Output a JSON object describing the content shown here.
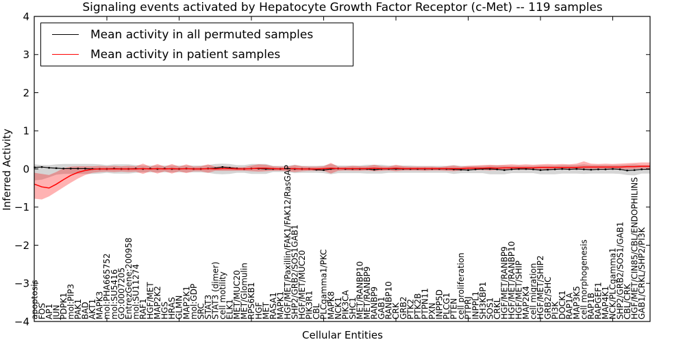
{
  "title": "Signaling events activated by Hepatocyte Growth Factor Receptor (c-Met) -- 119 samples",
  "colors": {
    "patient": "#ff0000",
    "permuted": "#000000",
    "patient_band": "#ff0000",
    "permuted_band": "#000000"
  },
  "chart_data": {
    "type": "line",
    "title": "Signaling events activated by Hepatocyte Growth Factor Receptor (c-Met) -- 119 samples",
    "xlabel": "Cellular Entities",
    "ylabel": "Inferred Activity",
    "ylim": [
      -4,
      4
    ],
    "yticks": [
      4,
      3,
      2,
      1,
      0,
      -1,
      -2,
      -3,
      -4
    ],
    "ytick_labels": [
      "4",
      "3",
      "2",
      "1",
      "0",
      "−1",
      "−2",
      "−3",
      "−4"
    ],
    "grid": false,
    "legend": {
      "position": "upper-left",
      "entries": [
        {
          "label": "Mean activity in all permuted samples",
          "color": "#000000"
        },
        {
          "label": "Mean activity in patient samples",
          "color": "#ff0000"
        }
      ]
    },
    "categories": [
      "apoptosis",
      "FOS",
      "AP1",
      "JUN",
      "PDPK1",
      "mol:PIP3",
      "PAK1",
      "BAD",
      "AKT1",
      "MAPK3",
      "mol:PHA665752",
      "mol:SU5416",
      "GO:0007205",
      "EntrezGene:200958",
      "mol:SU11274",
      "RAF1",
      "HGF/MET",
      "MAP2K2",
      "HGS",
      "HRAS",
      "GLMN",
      "MAP2K1",
      "mol:GDP",
      "SRC",
      "STAT3",
      "STAT3 (dimer)",
      "cell motility",
      "ELK1",
      "MET/MUC20",
      "MET/Glomulin",
      "RPS6KB1",
      "HGF",
      "MET",
      "RASA1",
      "MAPK1",
      "HGF/MET/Paxillin/FAK1/FAK12/RasGAP",
      "SHP2/GRB2/SOS1GAB1",
      "HGF/MET/MUC20",
      "PIK3R1",
      "CBL",
      "PLCgamma1/PKC",
      "MAPK8",
      "NCK1",
      "PIK3CA",
      "SHC1",
      "MET/RANBP10",
      "MET/RANBP9",
      "RANBP9",
      "GAB1",
      "RANBP10",
      "CRK",
      "GRB2",
      "PTK2",
      "PTK2B",
      "PTPN11",
      "PXN",
      "INPP5D",
      "PLCG1",
      "PTEN",
      "cell proliferation",
      "PTPRJ",
      "INPPL1",
      "SH3KBP1",
      "SOS1",
      "CRKL",
      "HGF/MET/RANBP9",
      "HGF/MET/RANBP10",
      "HGF/MET/SHIP",
      "MAP2K4",
      "cell migration",
      "HGF/MET/SHIP2",
      "GRB2/SHC",
      "PI3K",
      "DOCK1",
      "RAP1A",
      "MAP3K5",
      "cell morphogenesis",
      "RAP1B",
      "RAPGEF1",
      "MAP4K1",
      "NCK/PLCgamma1",
      "SHP2/GRB2/SOS1/GAB1",
      "CBL/CRK",
      "HGF/MET/CIN85/CBL/ENDOPHILINS",
      "GAB1/CRKL/SHP2/PI3K"
    ],
    "series": [
      {
        "name": "Mean activity in all permuted samples",
        "color": "#000000",
        "width": 1.2,
        "markers": true,
        "band_color": "#888888",
        "band_opacity": 0.35,
        "values": [
          0.04,
          0.05,
          0.03,
          0.02,
          0.01,
          0.01,
          0.01,
          0.01,
          0.0,
          0.0,
          0.0,
          0.01,
          0.0,
          0.0,
          0.01,
          0.0,
          0.01,
          0.0,
          0.01,
          0.0,
          0.0,
          0.01,
          0.0,
          0.0,
          0.01,
          0.02,
          0.05,
          0.03,
          0.01,
          0.0,
          0.01,
          0.01,
          0.0,
          0.0,
          0.0,
          0.01,
          0.0,
          0.0,
          0.0,
          -0.02,
          -0.03,
          0.0,
          0.01,
          0.0,
          0.0,
          0.0,
          0.0,
          -0.02,
          0.0,
          0.0,
          0.0,
          0.0,
          0.0,
          0.0,
          0.0,
          0.0,
          0.0,
          0.0,
          -0.01,
          -0.02,
          -0.03,
          -0.01,
          0.0,
          0.0,
          -0.01,
          -0.03,
          -0.01,
          0.0,
          0.0,
          -0.01,
          -0.03,
          -0.02,
          -0.01,
          0.0,
          -0.01,
          0.0,
          -0.01,
          -0.02,
          -0.01,
          -0.01,
          0.0,
          -0.01,
          -0.04,
          -0.03,
          -0.01
        ],
        "band_high": [
          0.12,
          0.1,
          0.1,
          0.12,
          0.13,
          0.13,
          0.13,
          0.13,
          0.13,
          0.12,
          0.1,
          0.12,
          0.12,
          0.12,
          0.1,
          0.09,
          0.09,
          0.09,
          0.09,
          0.09,
          0.09,
          0.09,
          0.09,
          0.09,
          0.1,
          0.13,
          0.14,
          0.13,
          0.1,
          0.1,
          0.13,
          0.13,
          0.13,
          0.08,
          0.08,
          0.08,
          0.11,
          0.08,
          0.08,
          0.08,
          0.09,
          0.13,
          0.09,
          0.09,
          0.09,
          0.09,
          0.11,
          0.11,
          0.11,
          0.09,
          0.09,
          0.09,
          0.09,
          0.08,
          0.08,
          0.08,
          0.08,
          0.08,
          0.1,
          0.08,
          0.08,
          0.08,
          0.08,
          0.09,
          0.09,
          0.09,
          0.08,
          0.08,
          0.08,
          0.08,
          0.09,
          0.09,
          0.09,
          0.1,
          0.1,
          0.1,
          0.12,
          0.1,
          0.1,
          0.1,
          0.1,
          0.1,
          0.11,
          0.12,
          0.1
        ],
        "band_low": [
          -0.3,
          -0.28,
          -0.22,
          -0.15,
          -0.13,
          -0.13,
          -0.13,
          -0.13,
          -0.13,
          -0.12,
          -0.1,
          -0.12,
          -0.12,
          -0.12,
          -0.1,
          -0.09,
          -0.09,
          -0.09,
          -0.09,
          -0.09,
          -0.09,
          -0.09,
          -0.09,
          -0.09,
          -0.1,
          -0.13,
          -0.14,
          -0.13,
          -0.1,
          -0.1,
          -0.13,
          -0.13,
          -0.13,
          -0.08,
          -0.08,
          -0.08,
          -0.11,
          -0.1,
          -0.1,
          -0.1,
          -0.11,
          -0.14,
          -0.11,
          -0.11,
          -0.11,
          -0.11,
          -0.12,
          -0.12,
          -0.12,
          -0.1,
          -0.1,
          -0.1,
          -0.1,
          -0.1,
          -0.1,
          -0.1,
          -0.1,
          -0.1,
          -0.13,
          -0.11,
          -0.11,
          -0.11,
          -0.11,
          -0.14,
          -0.14,
          -0.14,
          -0.11,
          -0.11,
          -0.11,
          -0.11,
          -0.14,
          -0.14,
          -0.14,
          -0.12,
          -0.12,
          -0.12,
          -0.13,
          -0.12,
          -0.12,
          -0.12,
          -0.12,
          -0.13,
          -0.16,
          -0.17,
          -0.12
        ]
      },
      {
        "name": "Mean activity in patient samples",
        "color": "#ff0000",
        "width": 1.5,
        "markers": false,
        "band_color": "#ff0000",
        "band_opacity": 0.3,
        "values": [
          -0.4,
          -0.47,
          -0.5,
          -0.4,
          -0.28,
          -0.17,
          -0.09,
          -0.04,
          -0.01,
          0.0,
          0.0,
          0.0,
          0.0,
          0.0,
          0.0,
          0.01,
          0.0,
          0.01,
          0.0,
          0.01,
          0.0,
          0.01,
          0.0,
          0.0,
          0.01,
          0.0,
          0.01,
          0.01,
          0.0,
          0.0,
          0.01,
          0.02,
          0.02,
          0.01,
          0.0,
          0.01,
          0.01,
          0.0,
          0.0,
          0.0,
          0.01,
          0.02,
          0.01,
          0.01,
          0.01,
          0.01,
          0.01,
          0.02,
          0.01,
          0.01,
          0.02,
          0.01,
          0.01,
          0.01,
          0.01,
          0.01,
          0.01,
          0.01,
          0.01,
          0.01,
          0.02,
          0.02,
          0.02,
          0.03,
          0.02,
          0.03,
          0.03,
          0.03,
          0.03,
          0.03,
          0.04,
          0.04,
          0.04,
          0.04,
          0.04,
          0.04,
          0.05,
          0.05,
          0.05,
          0.05,
          0.05,
          0.05,
          0.06,
          0.06,
          0.07
        ],
        "band_high": [
          -0.1,
          -0.13,
          -0.16,
          -0.08,
          0.02,
          0.06,
          0.07,
          0.07,
          0.07,
          0.08,
          0.07,
          0.08,
          0.07,
          0.08,
          0.07,
          0.14,
          0.06,
          0.13,
          0.06,
          0.13,
          0.06,
          0.12,
          0.06,
          0.07,
          0.12,
          0.06,
          0.07,
          0.06,
          0.05,
          0.05,
          0.09,
          0.12,
          0.11,
          0.07,
          0.06,
          0.06,
          0.1,
          0.07,
          0.06,
          0.06,
          0.07,
          0.16,
          0.06,
          0.06,
          0.08,
          0.07,
          0.07,
          0.11,
          0.07,
          0.06,
          0.11,
          0.07,
          0.06,
          0.06,
          0.06,
          0.06,
          0.05,
          0.07,
          0.09,
          0.06,
          0.08,
          0.09,
          0.1,
          0.11,
          0.1,
          0.11,
          0.12,
          0.11,
          0.12,
          0.11,
          0.12,
          0.13,
          0.12,
          0.13,
          0.12,
          0.14,
          0.2,
          0.14,
          0.13,
          0.14,
          0.13,
          0.14,
          0.15,
          0.16,
          0.17
        ],
        "band_low": [
          -0.78,
          -0.8,
          -0.72,
          -0.6,
          -0.48,
          -0.36,
          -0.25,
          -0.16,
          -0.1,
          -0.08,
          -0.07,
          -0.08,
          -0.07,
          -0.08,
          -0.07,
          -0.13,
          -0.06,
          -0.12,
          -0.06,
          -0.12,
          -0.06,
          -0.11,
          -0.06,
          -0.06,
          -0.1,
          -0.05,
          -0.05,
          -0.05,
          -0.05,
          -0.05,
          -0.06,
          -0.07,
          -0.06,
          -0.05,
          -0.05,
          -0.06,
          -0.08,
          -0.06,
          -0.05,
          -0.05,
          -0.05,
          -0.12,
          -0.05,
          -0.04,
          -0.05,
          -0.05,
          -0.04,
          -0.06,
          -0.05,
          -0.04,
          -0.06,
          -0.04,
          -0.04,
          -0.04,
          -0.05,
          -0.04,
          -0.04,
          -0.05,
          -0.06,
          -0.04,
          -0.03,
          -0.03,
          -0.03,
          -0.04,
          -0.03,
          -0.02,
          -0.02,
          -0.02,
          -0.02,
          -0.02,
          -0.01,
          -0.02,
          -0.01,
          -0.01,
          -0.01,
          0.0,
          -0.01,
          0.0,
          0.0,
          0.0,
          0.0,
          0.0,
          -0.01,
          0.0,
          0.01
        ]
      }
    ]
  }
}
